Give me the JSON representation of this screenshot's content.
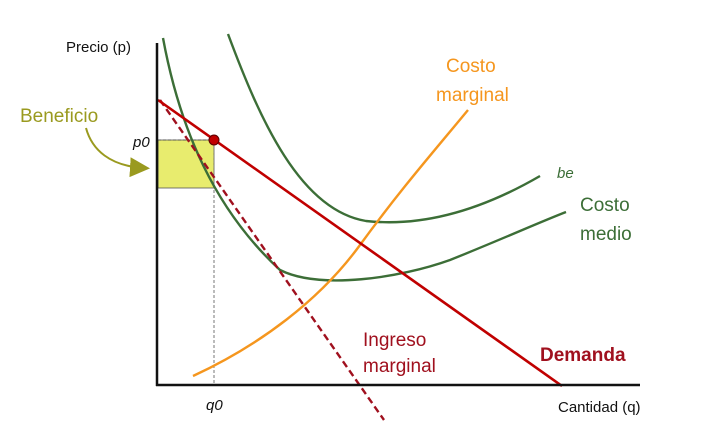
{
  "axes": {
    "y_label": "Precio (p)",
    "x_label": "Cantidad (q)"
  },
  "labels": {
    "profit": "Beneficio",
    "p0": "p0",
    "q0": "q0",
    "be": "be",
    "marginal_cost_line1": "Costo",
    "marginal_cost_line2": "marginal",
    "average_cost_line1": "Costo",
    "average_cost_line2": "medio",
    "marginal_revenue_line1": "Ingreso",
    "marginal_revenue_line2": "marginal",
    "demand": "Demanda"
  },
  "colors": {
    "demand": "#c00000",
    "marginal_revenue": "#a0101e",
    "marginal_cost": "#f5961e",
    "average_cost": "#3c6e37",
    "profit_fill": "#e8ec6e",
    "profit_label": "#9a9a1f",
    "axis": "#111111"
  }
}
